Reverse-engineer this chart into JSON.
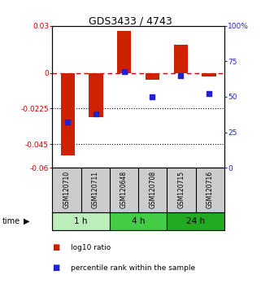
{
  "title": "GDS3433 / 4743",
  "samples": [
    "GSM120710",
    "GSM120711",
    "GSM120648",
    "GSM120708",
    "GSM120715",
    "GSM120716"
  ],
  "groups": [
    {
      "label": "1 h",
      "indices": [
        0,
        1
      ]
    },
    {
      "label": "4 h",
      "indices": [
        2,
        3
      ]
    },
    {
      "label": "24 h",
      "indices": [
        4,
        5
      ]
    }
  ],
  "group_colors": [
    "#bbeebb",
    "#44cc44",
    "#22aa22"
  ],
  "log10_ratio": [
    -0.052,
    -0.028,
    0.027,
    -0.004,
    0.018,
    -0.002
  ],
  "percentile_rank": [
    32,
    38,
    68,
    50,
    65,
    52
  ],
  "ylim_left": [
    -0.06,
    0.03
  ],
  "ylim_right": [
    0,
    100
  ],
  "yticks_left": [
    0.03,
    0,
    -0.0225,
    -0.045,
    -0.06
  ],
  "ytick_labels_left": [
    "0.03",
    "0",
    "-0.0225",
    "-0.045",
    "-0.06"
  ],
  "yticks_right": [
    100,
    75,
    50,
    25,
    0
  ],
  "ytick_labels_right": [
    "100%",
    "75",
    "50",
    "25",
    "0"
  ],
  "hlines": [
    0,
    -0.0225,
    -0.045
  ],
  "hline_styles": [
    "dashed",
    "dotted",
    "dotted"
  ],
  "hline_colors": [
    "#cc0000",
    "black",
    "black"
  ],
  "bar_color": "#cc2200",
  "scatter_color": "#2222cc",
  "bar_width": 0.5,
  "legend_entries": [
    "log10 ratio",
    "percentile rank within the sample"
  ],
  "time_label": "time",
  "sample_bg": "#cccccc"
}
